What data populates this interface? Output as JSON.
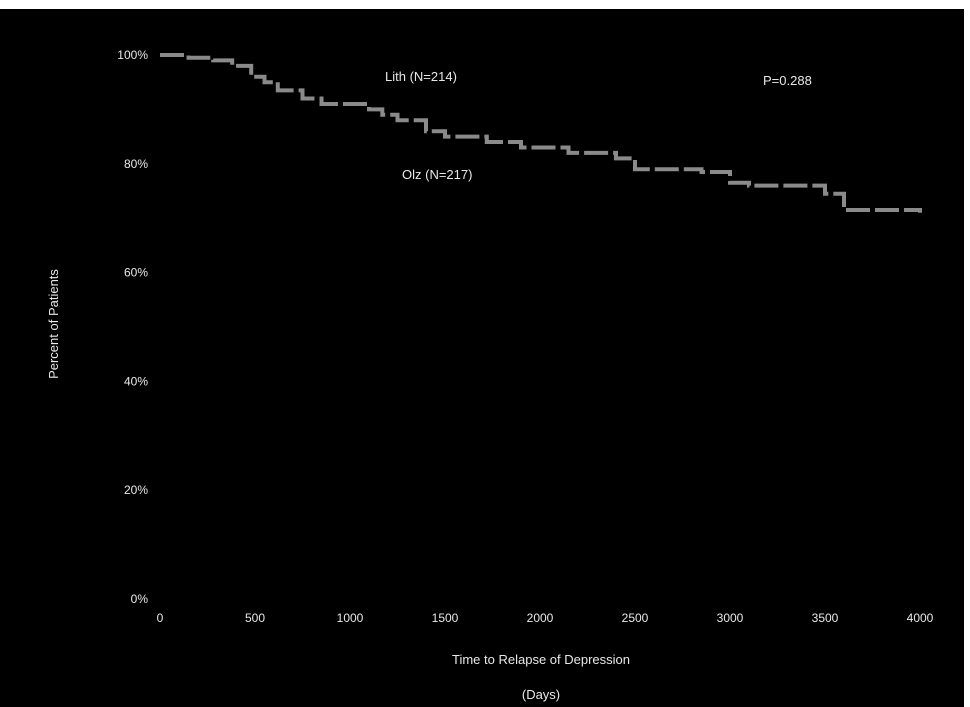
{
  "chart_data": {
    "type": "line",
    "title": "",
    "xlabel_line1": "Time to Relapse of Depression",
    "xlabel_line2": "(Days)",
    "ylabel": "Percent of Patients",
    "x_ticks": [
      0,
      500,
      1000,
      1500,
      2000,
      2500,
      3000,
      3500,
      4000
    ],
    "y_ticks": [
      0,
      20,
      40,
      60,
      80,
      100
    ],
    "y_tick_labels": [
      "0%",
      "20%",
      "40%",
      "60%",
      "80%",
      "100%"
    ],
    "xlim": [
      0,
      4000
    ],
    "ylim": [
      0,
      100
    ],
    "grid": false,
    "colors": {
      "background": "#000000",
      "series": "#8a8a8a",
      "text": "#e8e8e8"
    },
    "annotations": {
      "lith": "Lith (N=214)",
      "olz": "Olz (N=217)",
      "p_value": "P=0.288"
    },
    "series": [
      {
        "name": "Lith (N=214)",
        "x": [
          0,
          150,
          280,
          380,
          480,
          550,
          620,
          750,
          850,
          1100,
          1170,
          1250,
          1400,
          1500,
          1720,
          1900,
          2150,
          2400,
          2500,
          2850,
          3000,
          3100,
          3500,
          3600,
          4000
        ],
        "y": [
          100,
          99.5,
          99,
          98,
          96,
          95,
          93.5,
          92,
          91,
          90,
          89,
          88,
          86,
          85,
          84,
          83,
          82,
          81,
          79,
          78.5,
          76.5,
          76,
          74.5,
          71.5,
          71
        ]
      }
    ]
  }
}
